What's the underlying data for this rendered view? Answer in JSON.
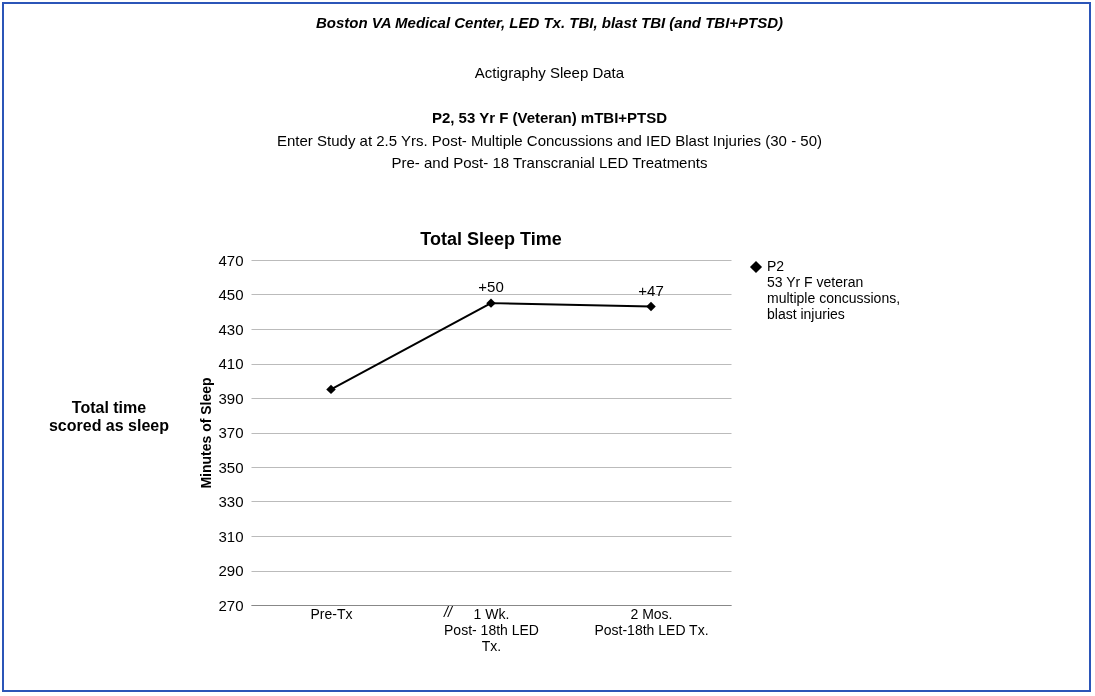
{
  "chart_data": {
    "type": "line",
    "title": "Total Sleep Time",
    "ylabel": "Minutes of Sleep",
    "categories": [
      "Pre-Tx",
      "1 Wk.\nPost- 18th LED\nTx.",
      "2 Mos.\nPost-18th LED Tx."
    ],
    "series": [
      {
        "name": "P2\n53 Yr F veteran\nmultiple concussions,\nblast injuries",
        "color": "#000000",
        "values": [
          395,
          445,
          443
        ]
      }
    ],
    "ylim": [
      270,
      470
    ],
    "yticks": [
      270,
      290,
      310,
      330,
      350,
      370,
      390,
      410,
      430,
      450,
      470
    ],
    "grid": "y",
    "legend": "right",
    "marker": "diamond",
    "line_style": "solid",
    "annotations": [
      "Boston VA Medical Center, LED Tx. TBI, blast TBI  (and TBI+PTSD)",
      "Actigraphy Sleep Data",
      "P2, 53 Yr F (Veteran)    mTBI+PTSD",
      "Enter Study at 2.5 Yrs. Post- Multiple Concussions and IED Blast Injuries (30 - 50)",
      "Pre- and Post- 18 Transcranial LED Treatments",
      "Total time\nscored as sleep",
      "//",
      {
        "text": "+50",
        "x": "1 Wk.\nPost- 18th LED\nTx.",
        "y": 445
      },
      {
        "text": "+47",
        "x": "2 Mos.\nPost-18th LED Tx.",
        "y": 443
      }
    ]
  }
}
